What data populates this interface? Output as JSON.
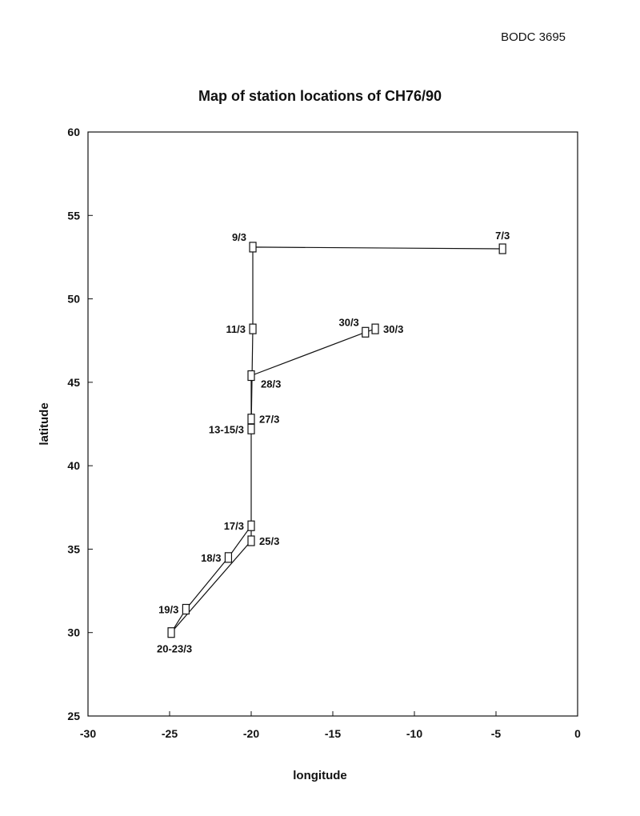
{
  "header": {
    "doc_ref": "BODC 3695"
  },
  "chart_data": {
    "type": "line",
    "title": "Map of station locations of CH76/90",
    "xlabel": "longitude",
    "ylabel": "latitude",
    "xlim": [
      -30,
      0
    ],
    "ylim": [
      25,
      60
    ],
    "x_ticks": [
      -30,
      -25,
      -20,
      -15,
      -10,
      -5,
      0
    ],
    "y_ticks": [
      25,
      30,
      35,
      40,
      45,
      50,
      55,
      60
    ],
    "grid": false,
    "marker": "square",
    "track": [
      {
        "label": "7/3",
        "lon": -4.6,
        "lat": 53.0,
        "label_pos": "above"
      },
      {
        "label": "9/3",
        "lon": -19.9,
        "lat": 53.1,
        "label_pos": "left-above"
      },
      {
        "label": "11/3",
        "lon": -19.9,
        "lat": 48.2,
        "label_pos": "left"
      },
      {
        "label": "13-15/3",
        "lon": -20.0,
        "lat": 42.2,
        "label_pos": "left"
      },
      {
        "label": "17/3",
        "lon": -20.0,
        "lat": 36.4,
        "label_pos": "left"
      },
      {
        "label": "18/3",
        "lon": -21.4,
        "lat": 34.5,
        "label_pos": "left"
      },
      {
        "label": "19/3",
        "lon": -24.0,
        "lat": 31.4,
        "label_pos": "left"
      },
      {
        "label": "20-23/3",
        "lon": -24.9,
        "lat": 30.0,
        "label_pos": "below"
      },
      {
        "label": "25/3",
        "lon": -20.0,
        "lat": 35.5,
        "label_pos": "right"
      },
      {
        "label": "27/3",
        "lon": -20.0,
        "lat": 42.8,
        "label_pos": "right"
      },
      {
        "label": "28/3",
        "lon": -20.0,
        "lat": 45.4,
        "label_pos": "right-below"
      },
      {
        "label": "30/3",
        "lon": -13.0,
        "lat": 48.0,
        "label_pos": "left-above"
      },
      {
        "label": "30/3",
        "lon": -12.4,
        "lat": 48.2,
        "label_pos": "right"
      }
    ]
  }
}
